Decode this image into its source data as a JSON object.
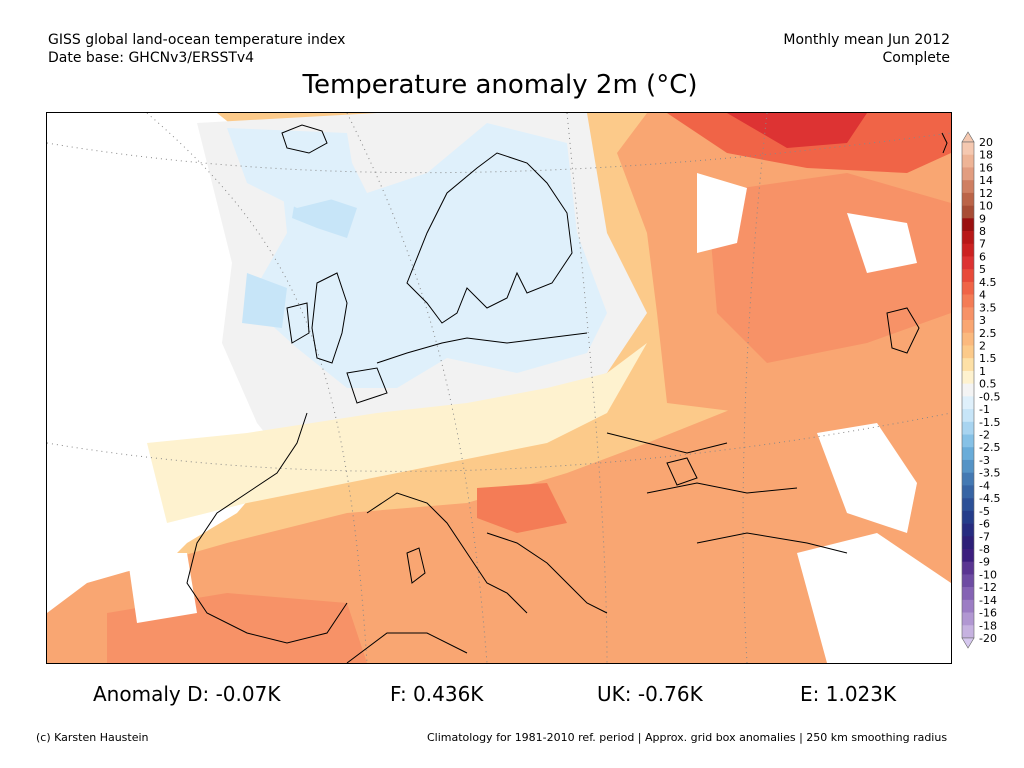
{
  "header": {
    "left_line1": "GISS global land-ocean temperature index",
    "left_line2": "Date base: GHCNv3/ERSSTv4",
    "right_line1": "Monthly mean Jun 2012",
    "right_line2": "Complete"
  },
  "title": "Temperature anomaly 2m (°C)",
  "legend": {
    "labels": [
      "20",
      "18",
      "16",
      "14",
      "12",
      "10",
      "9",
      "8",
      "7",
      "6",
      "5",
      "4.5",
      "4",
      "3.5",
      "3",
      "2.5",
      "2",
      "1.5",
      "1",
      "0.5",
      "-0.5",
      "-1",
      "-1.5",
      "-2",
      "-2.5",
      "-3",
      "-3.5",
      "-4",
      "-4.5",
      "-5",
      "-6",
      "-7",
      "-8",
      "-9",
      "-10",
      "-12",
      "-14",
      "-16",
      "-18",
      "-20"
    ],
    "colors": [
      "#f5c8b0",
      "#eeb496",
      "#e29d80",
      "#cf7f62",
      "#bb6448",
      "#a84d35",
      "#9a1010",
      "#b81818",
      "#cc2222",
      "#dd3333",
      "#e84a3a",
      "#f06447",
      "#f47c56",
      "#f79267",
      "#f9a672",
      "#fbb97e",
      "#fcca8a",
      "#fde0a6",
      "#fef2cf",
      "#f4f4f4",
      "#dff0fb",
      "#c7e5f8",
      "#a8d4f0",
      "#86c1e6",
      "#69acd9",
      "#5593c6",
      "#4479b3",
      "#3764a4",
      "#2c5097",
      "#243c8a",
      "#262b80",
      "#2d1f78",
      "#3c1e7e",
      "#5a3592",
      "#6e4ca3",
      "#8563b4",
      "#9c7dc4",
      "#b197d2",
      "#c6b2e0"
    ],
    "arrow_top_color": "#f5c8b0",
    "arrow_bottom_color": "#d6c8ef"
  },
  "stats": {
    "d": "Anomaly D: -0.07K",
    "f": "F: 0.436K",
    "uk": "UK: -0.76K",
    "e": "E: 1.023K"
  },
  "footer": {
    "credit": "(c) Karsten Haustein",
    "climatology": "Climatology for 1981-2010 ref. period | Approx. grid box anomalies | 250 km smoothing radius"
  }
}
